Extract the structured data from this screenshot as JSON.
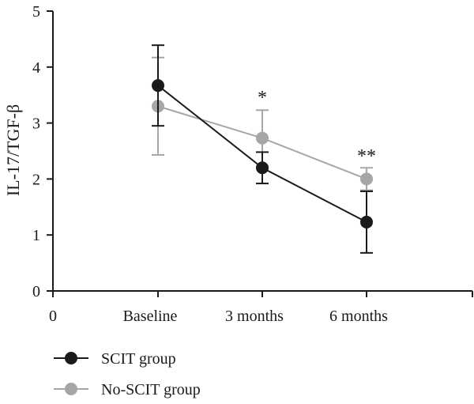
{
  "chart_data": {
    "type": "line",
    "ylabel": "IL-17/TGF-β",
    "xlabel": "",
    "ylim": [
      0,
      5
    ],
    "y_ticks": [
      "0",
      "1",
      "2",
      "3",
      "4",
      "5"
    ],
    "x_origin_label": "0",
    "categories": [
      "Baseline",
      "3 months",
      "6 months"
    ],
    "series": [
      {
        "name": "SCIT group",
        "color": "#1a1a1a",
        "values": [
          3.67,
          2.2,
          1.23
        ],
        "error": [
          0.72,
          0.28,
          0.55
        ]
      },
      {
        "name": "No-SCIT group",
        "color": "#a6a6a6",
        "values": [
          3.3,
          2.73,
          2.0
        ],
        "error": [
          0.87,
          0.5,
          0.2
        ]
      }
    ],
    "annotations": [
      {
        "category": "3 months",
        "text": "*",
        "y": 3.35
      },
      {
        "category": "6 months",
        "text": "**",
        "y": 2.3
      }
    ],
    "legend_position": "bottom-left"
  }
}
